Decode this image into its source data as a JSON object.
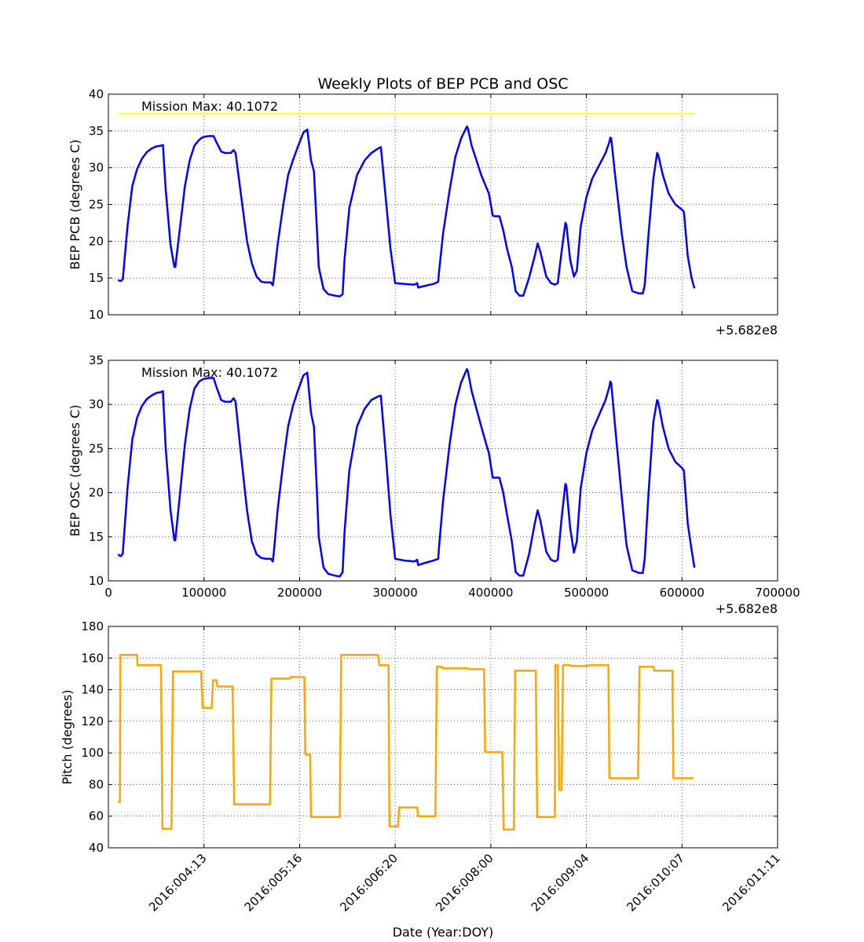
{
  "chart_data": [
    {
      "type": "line",
      "title": "Weekly Plots of BEP PCB and OSC",
      "ylabel": "BEP PCB (degrees C)",
      "xlabel": "",
      "offset_label": "+5.682e8",
      "xlim": [
        0,
        700000
      ],
      "ylim": [
        10,
        40
      ],
      "yticks": [
        10,
        15,
        20,
        25,
        30,
        35,
        40
      ],
      "xticks": [
        0,
        100000,
        200000,
        300000,
        400000,
        500000,
        600000,
        700000
      ],
      "show_xtick_labels": false,
      "grid": true,
      "annotation": "Mission Max: 40.1072",
      "reference_line": {
        "y": 37.4,
        "x_start": 10000,
        "x_end": 613000,
        "color": "#ffff00"
      },
      "series": [
        {
          "color": "#0000ff",
          "x": [
            10000,
            13000,
            15000,
            20000,
            25000,
            30000,
            35000,
            40000,
            45000,
            50000,
            55000,
            57000,
            60000,
            65000,
            69000,
            70000,
            75000,
            80000,
            85000,
            90000,
            95000,
            98000,
            100000,
            105000,
            110000,
            113000,
            118000,
            122000,
            128000,
            131000,
            133000,
            138000,
            145000,
            150000,
            155000,
            160000,
            165000,
            170000,
            172000,
            173000,
            177000,
            183000,
            188000,
            193000,
            198000,
            204000,
            208000,
            209000,
            212000,
            215000,
            218000,
            220000,
            225000,
            230000,
            237000,
            242000,
            245000,
            247000,
            252000,
            260000,
            268000,
            275000,
            282000,
            285000,
            290000,
            295000,
            300000,
            310000,
            320000,
            323000,
            324000,
            330000,
            340000,
            345000,
            346000,
            350000,
            357000,
            363000,
            369000,
            375000,
            376000,
            380000,
            390000,
            396000,
            398000,
            402000,
            404000,
            409000,
            413000,
            417000,
            422000,
            426000,
            430000,
            434000,
            440000,
            446000,
            449000,
            452000,
            458000,
            463000,
            467000,
            470000,
            474000,
            478000,
            479000,
            483000,
            487000,
            490000,
            494000,
            500000,
            506000,
            512000,
            520000,
            524000,
            525000,
            526000,
            530000,
            537000,
            542000,
            548000,
            555000,
            557000,
            559000,
            561000,
            565000,
            570000,
            574000,
            575000,
            580000,
            586000,
            593000,
            600000,
            602000,
            606000,
            610000,
            613000
          ],
          "values": [
            14.7,
            14.6,
            14.8,
            22.0,
            27.5,
            29.8,
            31.2,
            32.1,
            32.6,
            32.9,
            33.0,
            33.1,
            27.0,
            19.5,
            16.5,
            16.5,
            22.0,
            27.5,
            31.0,
            33.0,
            33.8,
            34.1,
            34.2,
            34.3,
            34.3,
            33.5,
            32.2,
            32.0,
            32.0,
            32.4,
            32.0,
            27.0,
            20.0,
            17.0,
            15.2,
            14.5,
            14.4,
            14.4,
            14.0,
            15.0,
            19.5,
            25.0,
            29.0,
            31.0,
            32.8,
            34.8,
            35.2,
            34.2,
            31.0,
            29.5,
            22.0,
            16.5,
            13.5,
            12.8,
            12.6,
            12.5,
            12.8,
            17.5,
            24.5,
            29.0,
            31.0,
            32.0,
            32.6,
            32.8,
            26.0,
            19.0,
            14.3,
            14.2,
            14.1,
            14.3,
            13.7,
            13.9,
            14.2,
            14.5,
            16.0,
            21.0,
            27.0,
            31.5,
            34.0,
            35.6,
            35.4,
            33.0,
            29.0,
            27.1,
            26.5,
            23.5,
            23.4,
            23.4,
            21.5,
            19.0,
            16.5,
            13.2,
            12.6,
            12.6,
            15.0,
            18.0,
            19.7,
            18.5,
            15.2,
            14.3,
            14.1,
            14.3,
            18.5,
            22.5,
            22.3,
            17.5,
            15.2,
            16.0,
            22.0,
            26.0,
            28.5,
            30.0,
            32.0,
            33.5,
            34.1,
            34.0,
            29.0,
            21.0,
            16.5,
            13.2,
            12.9,
            12.9,
            12.9,
            14.0,
            21.0,
            28.5,
            32.0,
            31.8,
            29.0,
            26.5,
            25.0,
            24.3,
            24.0,
            18.0,
            15.0,
            13.6
          ]
        }
      ]
    },
    {
      "type": "line",
      "ylabel": "BEP OSC (degrees C)",
      "xlabel": "",
      "offset_label": "+5.682e8",
      "xlim": [
        0,
        700000
      ],
      "ylim": [
        10,
        35
      ],
      "yticks": [
        10,
        15,
        20,
        25,
        30,
        35
      ],
      "xticks": [
        0,
        100000,
        200000,
        300000,
        400000,
        500000,
        600000,
        700000
      ],
      "xtick_labels": [
        "0",
        "100000",
        "200000",
        "300000",
        "400000",
        "500000",
        "600000",
        "700000"
      ],
      "grid": true,
      "annotation": "Mission Max: 40.1072",
      "series": [
        {
          "color": "#0000ff",
          "x": [
            10000,
            13000,
            15000,
            20000,
            25000,
            30000,
            35000,
            40000,
            45000,
            50000,
            55000,
            57000,
            60000,
            65000,
            69000,
            70000,
            75000,
            80000,
            85000,
            90000,
            95000,
            98000,
            100000,
            105000,
            110000,
            113000,
            118000,
            122000,
            128000,
            131000,
            133000,
            138000,
            145000,
            150000,
            155000,
            160000,
            165000,
            170000,
            172000,
            173000,
            177000,
            183000,
            188000,
            193000,
            198000,
            204000,
            208000,
            209000,
            212000,
            215000,
            218000,
            220000,
            225000,
            230000,
            237000,
            242000,
            245000,
            247000,
            252000,
            260000,
            268000,
            275000,
            282000,
            285000,
            290000,
            295000,
            300000,
            310000,
            320000,
            323000,
            324000,
            330000,
            340000,
            345000,
            346000,
            350000,
            357000,
            363000,
            369000,
            375000,
            376000,
            380000,
            390000,
            396000,
            398000,
            402000,
            404000,
            409000,
            413000,
            417000,
            422000,
            426000,
            430000,
            434000,
            440000,
            446000,
            449000,
            452000,
            458000,
            463000,
            467000,
            470000,
            474000,
            478000,
            479000,
            483000,
            487000,
            490000,
            494000,
            500000,
            506000,
            512000,
            520000,
            524000,
            525000,
            526000,
            530000,
            537000,
            542000,
            548000,
            555000,
            557000,
            559000,
            561000,
            565000,
            570000,
            574000,
            575000,
            580000,
            586000,
            593000,
            600000,
            602000,
            606000,
            610000,
            613000
          ],
          "values": [
            13.0,
            12.8,
            13.1,
            20.5,
            26.0,
            28.5,
            29.8,
            30.6,
            31.0,
            31.3,
            31.4,
            31.5,
            25.0,
            18.0,
            14.6,
            14.6,
            20.0,
            25.5,
            29.5,
            31.8,
            32.6,
            32.8,
            32.9,
            33.0,
            33.0,
            32.0,
            30.5,
            30.3,
            30.3,
            30.7,
            30.3,
            25.0,
            18.0,
            14.5,
            13.0,
            12.6,
            12.5,
            12.5,
            12.2,
            13.2,
            18.0,
            23.5,
            27.5,
            29.8,
            31.5,
            33.3,
            33.6,
            32.5,
            29.0,
            27.5,
            20.5,
            15.0,
            11.5,
            10.8,
            10.6,
            10.5,
            11.0,
            15.5,
            22.5,
            27.5,
            29.5,
            30.5,
            30.9,
            31.0,
            24.5,
            17.5,
            12.5,
            12.3,
            12.2,
            12.4,
            11.8,
            12.0,
            12.3,
            12.5,
            14.0,
            19.0,
            25.5,
            30.0,
            32.5,
            34.0,
            33.8,
            31.5,
            27.5,
            25.2,
            24.5,
            21.7,
            21.7,
            21.7,
            20.0,
            17.5,
            14.5,
            11.0,
            10.6,
            10.6,
            13.0,
            16.5,
            18.0,
            16.8,
            13.3,
            12.4,
            12.2,
            12.4,
            17.0,
            21.0,
            20.8,
            16.0,
            13.2,
            14.5,
            20.5,
            24.5,
            27.0,
            28.5,
            30.5,
            32.0,
            32.6,
            32.4,
            27.5,
            19.5,
            14.0,
            11.2,
            10.9,
            10.9,
            10.9,
            12.5,
            20.0,
            28.0,
            30.5,
            30.3,
            27.5,
            25.0,
            23.5,
            22.8,
            22.5,
            16.5,
            13.5,
            11.5
          ]
        }
      ]
    },
    {
      "type": "line",
      "ylabel": "Pitch (degrees)",
      "xlabel": "Date (Year:DOY)",
      "xlim": [
        0,
        700000
      ],
      "ylim": [
        40,
        180
      ],
      "yticks": [
        40,
        60,
        80,
        100,
        120,
        140,
        160,
        180
      ],
      "xticks": [
        100000,
        200000,
        300000,
        400000,
        500000,
        600000,
        700000
      ],
      "xtick_labels": [
        "2016:004:13",
        "2016:005:16",
        "2016:006:20",
        "2016:008:00",
        "2016:009:04",
        "2016:010:07",
        "2016:011:11"
      ],
      "grid": true,
      "series": [
        {
          "color": "#ffa500",
          "x": [
            10000,
            12000,
            12500,
            30000,
            30500,
            55000,
            56500,
            66000,
            67500,
            97000,
            98500,
            108000,
            109500,
            113000,
            114000,
            130000,
            131500,
            169000,
            170500,
            190000,
            190500,
            205000,
            206000,
            211000,
            212000,
            242000,
            243500,
            282000,
            283500,
            293000,
            294000,
            303000,
            304000,
            323000,
            324000,
            342000,
            343500,
            349000,
            349500,
            377000,
            378000,
            393000,
            394000,
            412000,
            413500,
            424000,
            425500,
            447000,
            448500,
            467000,
            467500,
            470000,
            471500,
            474000,
            475500,
            483000,
            484000,
            501000,
            503000,
            523000,
            524000,
            554000,
            555500,
            570000,
            571000,
            590000,
            591000,
            612000
          ],
          "values": [
            69,
            69,
            162,
            162,
            155.5,
            155.5,
            52,
            52,
            151.5,
            151.5,
            128.5,
            128.5,
            146,
            146,
            142,
            142,
            67.5,
            67.5,
            147,
            147,
            148,
            148,
            99,
            99,
            59.5,
            59.5,
            162,
            162,
            155.5,
            155.5,
            53.5,
            53.5,
            65.5,
            65.5,
            60,
            60,
            154.5,
            154.5,
            153.5,
            153.5,
            153,
            153,
            100.5,
            100.5,
            51.5,
            51.5,
            152,
            152,
            59.5,
            59.5,
            155.5,
            155.5,
            76.5,
            76.5,
            155.5,
            155.5,
            155,
            155,
            155.5,
            155.5,
            84,
            84,
            154.5,
            154.5,
            152,
            152,
            84,
            84
          ]
        }
      ]
    }
  ]
}
